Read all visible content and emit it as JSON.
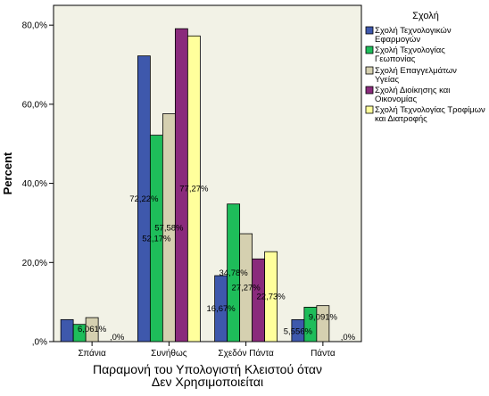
{
  "chart_data": {
    "type": "bar",
    "title": "",
    "xlabel": "Παραμονή του Υπολογιστή Κλειστού όταν Δεν Χρησιμοποιείται",
    "ylabel": "Percent",
    "ylim": [
      0,
      85
    ],
    "y_ticks": [
      0,
      20,
      40,
      60,
      80
    ],
    "y_tick_labels": [
      ",0%",
      "20,0%",
      "40,0%",
      "60,0%",
      "80,0%"
    ],
    "categories": [
      "Σπάνια",
      "Συνήθως",
      "Σχεδόν Πάντα",
      "Πάντα"
    ],
    "legend_title": "Σχολή",
    "legend_position": "right",
    "grid": false,
    "plot_background": "#f2f2e6",
    "series": [
      {
        "name": "Σχολή Τεχνολογικών Εφαρμογών",
        "color": "#3e58ac",
        "values": [
          5.56,
          72.22,
          16.67,
          5.556
        ]
      },
      {
        "name": "Σχολή Τεχνολογίας Γεωπονίας",
        "color": "#1ebd5a",
        "values": [
          4.35,
          52.17,
          34.78,
          8.7
        ]
      },
      {
        "name": "Σχολή Επαγγελμάτων Υγείας",
        "color": "#d5d0b0",
        "values": [
          6.061,
          57.58,
          27.27,
          9.091
        ]
      },
      {
        "name": "Σχολή Διοίκησης και Οικονομίας",
        "color": "#8a2b7c",
        "values": [
          0,
          79.1,
          20.9,
          0
        ]
      },
      {
        "name": "Σχολή Τεχνολογίας Τροφίμων και Διατροφής",
        "color": "#ffff9c",
        "values": [
          0,
          77.27,
          22.73,
          0
        ]
      }
    ],
    "data_labels": [
      {
        "category": 0,
        "series": 2,
        "text": "6,061%"
      },
      {
        "category": 0,
        "series": 4,
        "text": ",0%"
      },
      {
        "category": 1,
        "series": 0,
        "text": "72,22%"
      },
      {
        "category": 1,
        "series": 1,
        "text": "52,17%"
      },
      {
        "category": 1,
        "series": 2,
        "text": "57,58%"
      },
      {
        "category": 1,
        "series": 4,
        "text": "77,27%"
      },
      {
        "category": 2,
        "series": 0,
        "text": "16,67%"
      },
      {
        "category": 2,
        "series": 1,
        "text": "34,78%"
      },
      {
        "category": 2,
        "series": 2,
        "text": "27,27%"
      },
      {
        "category": 2,
        "series": 4,
        "text": "22,73%"
      },
      {
        "category": 3,
        "series": 0,
        "text": "5,556%"
      },
      {
        "category": 3,
        "series": 2,
        "text": "9,091%"
      },
      {
        "category": 3,
        "series": 4,
        "text": ",0%"
      }
    ]
  }
}
